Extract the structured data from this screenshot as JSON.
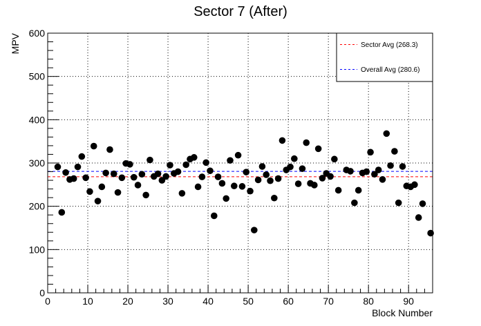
{
  "chart_data": {
    "type": "scatter",
    "title": "Sector 7 (After)",
    "xlabel": "Block Number",
    "ylabel": "MPV",
    "xlim": [
      0,
      96
    ],
    "ylim": [
      0,
      600
    ],
    "x_ticks": [
      0,
      10,
      20,
      30,
      40,
      50,
      60,
      70,
      80,
      90
    ],
    "y_ticks": [
      0,
      100,
      200,
      300,
      400,
      500,
      600
    ],
    "x_tick_labels": [
      "0",
      "10",
      "20",
      "30",
      "40",
      "50",
      "60",
      "70",
      "80",
      "90"
    ],
    "y_tick_labels": [
      "0",
      "100",
      "200",
      "300",
      "400",
      "500",
      "600"
    ],
    "grid": true,
    "legend_placement": "top-right",
    "marker_color": "#000000",
    "points": [
      {
        "x": 2.5,
        "y": 291
      },
      {
        "x": 3.5,
        "y": 186
      },
      {
        "x": 4.5,
        "y": 278
      },
      {
        "x": 5.5,
        "y": 262
      },
      {
        "x": 6.5,
        "y": 264
      },
      {
        "x": 7.5,
        "y": 291
      },
      {
        "x": 8.5,
        "y": 315
      },
      {
        "x": 9.5,
        "y": 266
      },
      {
        "x": 10.5,
        "y": 234
      },
      {
        "x": 11.5,
        "y": 339
      },
      {
        "x": 12.5,
        "y": 212
      },
      {
        "x": 13.5,
        "y": 245
      },
      {
        "x": 14.5,
        "y": 277
      },
      {
        "x": 15.5,
        "y": 331
      },
      {
        "x": 16.5,
        "y": 275
      },
      {
        "x": 17.5,
        "y": 232
      },
      {
        "x": 18.5,
        "y": 266
      },
      {
        "x": 19.5,
        "y": 299
      },
      {
        "x": 20.5,
        "y": 297
      },
      {
        "x": 21.5,
        "y": 267
      },
      {
        "x": 22.5,
        "y": 249
      },
      {
        "x": 23.5,
        "y": 274
      },
      {
        "x": 24.5,
        "y": 226
      },
      {
        "x": 25.5,
        "y": 307
      },
      {
        "x": 26.5,
        "y": 269
      },
      {
        "x": 27.5,
        "y": 275
      },
      {
        "x": 28.5,
        "y": 260
      },
      {
        "x": 29.5,
        "y": 269
      },
      {
        "x": 30.5,
        "y": 295
      },
      {
        "x": 31.5,
        "y": 276
      },
      {
        "x": 32.5,
        "y": 280
      },
      {
        "x": 33.5,
        "y": 230
      },
      {
        "x": 34.5,
        "y": 296
      },
      {
        "x": 35.5,
        "y": 309
      },
      {
        "x": 36.5,
        "y": 313
      },
      {
        "x": 37.5,
        "y": 245
      },
      {
        "x": 38.5,
        "y": 268
      },
      {
        "x": 39.5,
        "y": 301
      },
      {
        "x": 40.5,
        "y": 282
      },
      {
        "x": 41.5,
        "y": 178
      },
      {
        "x": 42.5,
        "y": 268
      },
      {
        "x": 43.5,
        "y": 253
      },
      {
        "x": 44.5,
        "y": 218
      },
      {
        "x": 45.5,
        "y": 306
      },
      {
        "x": 46.5,
        "y": 247
      },
      {
        "x": 47.5,
        "y": 318
      },
      {
        "x": 48.5,
        "y": 246
      },
      {
        "x": 49.5,
        "y": 279
      },
      {
        "x": 50.5,
        "y": 235
      },
      {
        "x": 51.5,
        "y": 145
      },
      {
        "x": 52.5,
        "y": 261
      },
      {
        "x": 53.5,
        "y": 292
      },
      {
        "x": 54.5,
        "y": 273
      },
      {
        "x": 55.5,
        "y": 259
      },
      {
        "x": 56.5,
        "y": 219
      },
      {
        "x": 57.5,
        "y": 264
      },
      {
        "x": 58.5,
        "y": 352
      },
      {
        "x": 59.5,
        "y": 284
      },
      {
        "x": 60.5,
        "y": 291
      },
      {
        "x": 61.5,
        "y": 310
      },
      {
        "x": 62.5,
        "y": 252
      },
      {
        "x": 63.5,
        "y": 287
      },
      {
        "x": 64.5,
        "y": 347
      },
      {
        "x": 65.5,
        "y": 253
      },
      {
        "x": 66.5,
        "y": 249
      },
      {
        "x": 67.5,
        "y": 333
      },
      {
        "x": 68.5,
        "y": 265
      },
      {
        "x": 69.5,
        "y": 276
      },
      {
        "x": 70.5,
        "y": 269
      },
      {
        "x": 71.5,
        "y": 309
      },
      {
        "x": 72.5,
        "y": 237
      },
      {
        "x": 74.5,
        "y": 284
      },
      {
        "x": 75.5,
        "y": 281
      },
      {
        "x": 76.5,
        "y": 208
      },
      {
        "x": 77.5,
        "y": 237
      },
      {
        "x": 78.5,
        "y": 277
      },
      {
        "x": 79.5,
        "y": 280
      },
      {
        "x": 80.5,
        "y": 325
      },
      {
        "x": 81.5,
        "y": 274
      },
      {
        "x": 82.5,
        "y": 284
      },
      {
        "x": 83.5,
        "y": 262
      },
      {
        "x": 84.5,
        "y": 368
      },
      {
        "x": 85.5,
        "y": 294
      },
      {
        "x": 86.5,
        "y": 327
      },
      {
        "x": 87.5,
        "y": 208
      },
      {
        "x": 88.5,
        "y": 292
      },
      {
        "x": 89.5,
        "y": 247
      },
      {
        "x": 90.5,
        "y": 245
      },
      {
        "x": 91.5,
        "y": 250
      },
      {
        "x": 92.5,
        "y": 174
      },
      {
        "x": 93.5,
        "y": 206
      },
      {
        "x": 95.5,
        "y": 138
      }
    ],
    "reference_lines": [
      {
        "name": "Sector Avg (268.3)",
        "y": 268.3,
        "color": "#ff0000",
        "style": "dashed"
      },
      {
        "name": "Overall Avg (280.6)",
        "y": 280.6,
        "color": "#0000ff",
        "style": "dashed"
      }
    ]
  }
}
